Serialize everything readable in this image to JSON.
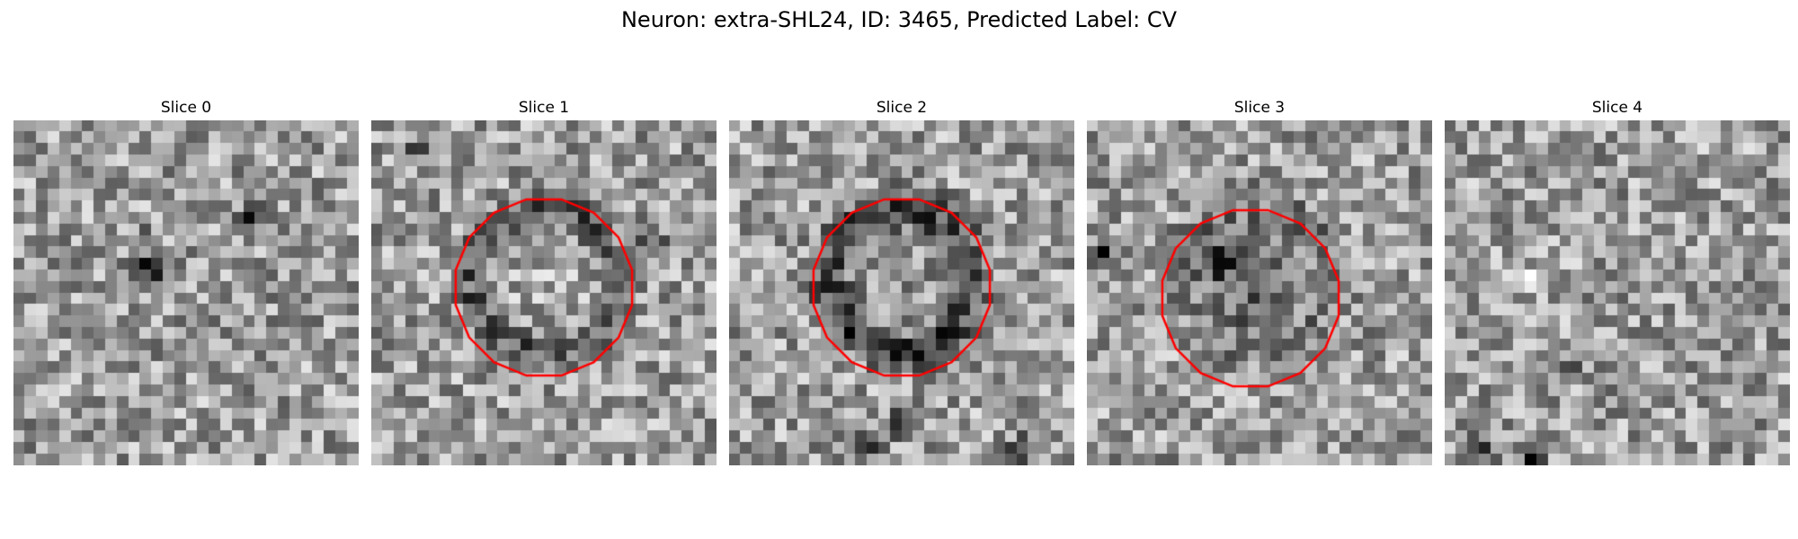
{
  "figure": {
    "title": "Neuron: extra-SHL24, ID: 3465, Predicted Label: CV",
    "contour_color": "#ff0000",
    "colormap": "gray",
    "grid_size": 30,
    "panels": [
      {
        "title": "Slice 0",
        "has_contour": false,
        "seed": 11,
        "ring": 0.0,
        "center_dark": 0.0,
        "spots": [
          [
            20.5,
            7.5,
            -1.0
          ],
          [
            11.5,
            12.5,
            -0.9
          ],
          [
            11,
            10,
            -0.5
          ]
        ]
      },
      {
        "title": "Slice 1",
        "has_contour": true,
        "seed": 23,
        "ring": 0.55,
        "center_dark": -0.15,
        "spots": [
          [
            4,
            2,
            -0.8
          ],
          [
            24,
            10,
            -0.6
          ]
        ]
      },
      {
        "title": "Slice 2",
        "has_contour": true,
        "seed": 37,
        "ring": 0.7,
        "center_dark": 0.1,
        "spots": [
          [
            12,
            28,
            -0.9
          ],
          [
            25,
            28,
            -0.8
          ],
          [
            14,
            26,
            -0.6
          ]
        ]
      },
      {
        "title": "Slice 3",
        "has_contour": true,
        "seed": 41,
        "ring": 0.15,
        "center_dark": 0.6,
        "spots": [
          [
            1,
            11,
            -1.0
          ],
          [
            11,
            12,
            -0.7
          ],
          [
            13,
            11,
            -0.6
          ]
        ]
      },
      {
        "title": "Slice 4",
        "has_contour": false,
        "seed": 53,
        "ring": 0.0,
        "center_dark": 0.0,
        "spots": [
          [
            6.5,
            13.5,
            0.9
          ],
          [
            3,
            28,
            -0.9
          ],
          [
            7,
            29,
            -0.8
          ],
          [
            2,
            14,
            -0.6
          ],
          [
            10,
            21,
            -0.6
          ]
        ]
      }
    ]
  }
}
